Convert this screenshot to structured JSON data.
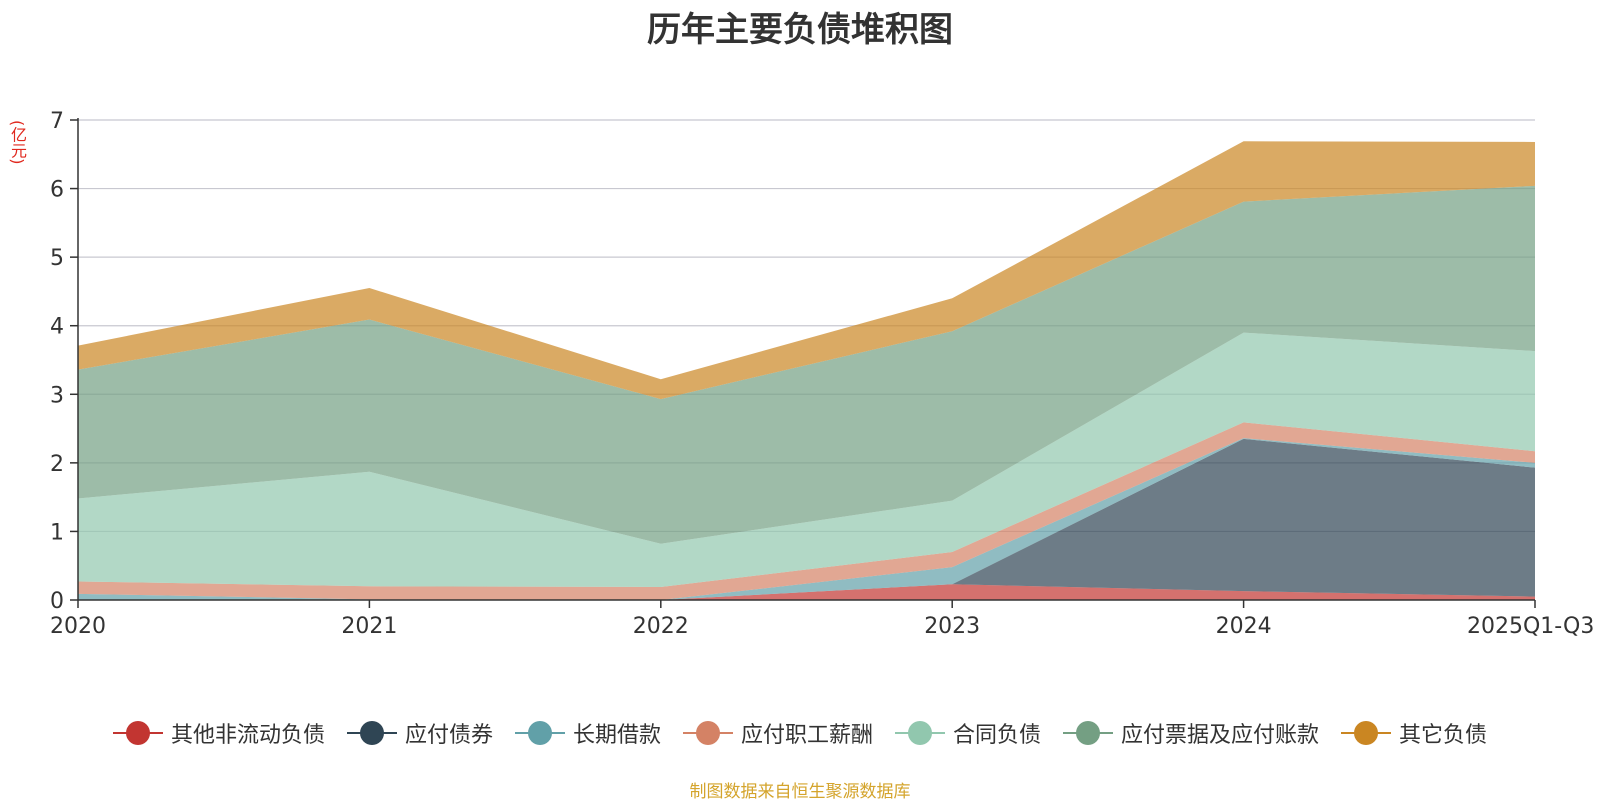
{
  "chart_data": {
    "type": "area",
    "stacked": true,
    "title": "历年主要负债堆积图",
    "ylabel": "(亿元)",
    "xlabel": "",
    "categories": [
      "2020",
      "2021",
      "2022",
      "2023",
      "2024",
      "2025Q1-Q3"
    ],
    "ylim": [
      0,
      7
    ],
    "yticks": [
      0,
      1,
      2,
      3,
      4,
      5,
      6,
      7
    ],
    "grid": true,
    "legend_position": "bottom",
    "series": [
      {
        "name": "其他非流动负债",
        "color": "#c23531",
        "values": [
          0.0,
          0.0,
          0.0,
          0.23,
          0.13,
          0.05
        ]
      },
      {
        "name": "应付债券",
        "color": "#2f4554",
        "values": [
          0.0,
          0.0,
          0.0,
          0.0,
          2.22,
          1.88
        ]
      },
      {
        "name": "长期借款",
        "color": "#61a0a8",
        "values": [
          0.09,
          0.01,
          0.0,
          0.25,
          0.01,
          0.07
        ]
      },
      {
        "name": "应付职工薪酬",
        "color": "#d48265",
        "values": [
          0.18,
          0.19,
          0.19,
          0.22,
          0.23,
          0.17
        ]
      },
      {
        "name": "合同负债",
        "color": "#91c7ae",
        "values": [
          1.21,
          1.67,
          0.63,
          0.75,
          1.31,
          1.46
        ]
      },
      {
        "name": "应付票据及应付账款",
        "color": "#749f83",
        "values": [
          1.88,
          2.22,
          2.11,
          2.47,
          1.91,
          2.41
        ]
      },
      {
        "name": "其它负债",
        "color": "#ca8622",
        "values": [
          0.35,
          0.46,
          0.29,
          0.48,
          0.88,
          0.64
        ]
      }
    ]
  },
  "footer": {
    "source": "制图数据来自恒生聚源数据库"
  }
}
